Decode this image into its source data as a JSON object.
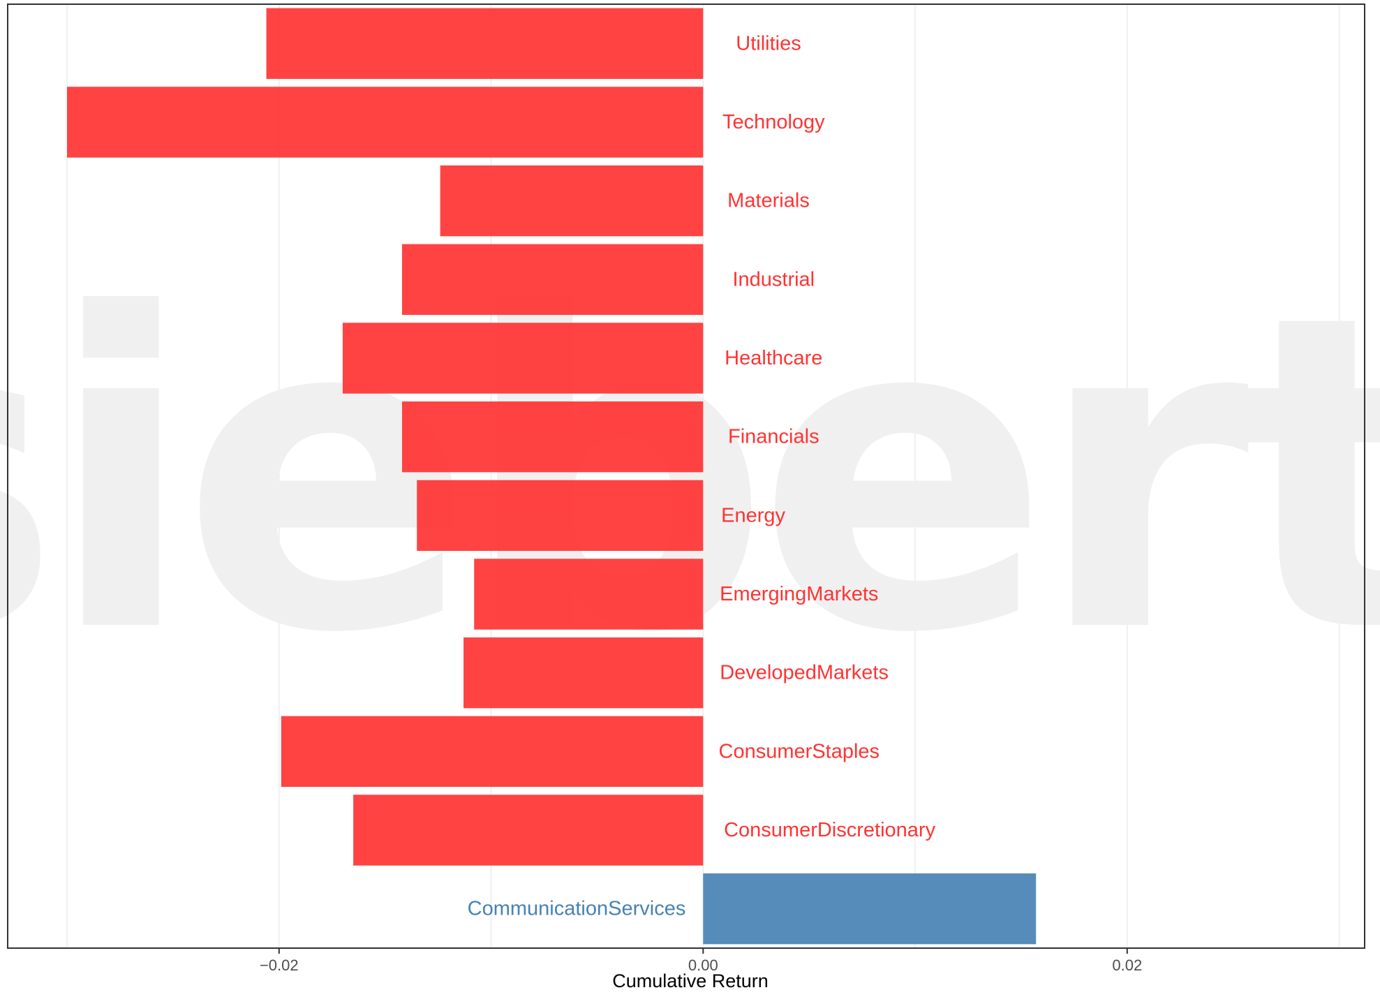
{
  "chart_data": {
    "type": "bar",
    "orientation": "horizontal",
    "title": "",
    "xlabel": "Cumulative Return",
    "ylabel": "",
    "xlim": [
      -0.0328,
      0.0312
    ],
    "x_ticks": [
      -0.02,
      0.0,
      0.02
    ],
    "x_tick_labels": [
      "−0.02",
      "0.00",
      "0.02"
    ],
    "grid": true,
    "legend": "none",
    "watermark": "siebert.",
    "colors": {
      "negative": "#FF3333",
      "positive": "#4682B4",
      "grid": "#EBEBEB",
      "watermark": "#F0F0F0"
    },
    "categories": [
      "Utilities",
      "Technology",
      "Materials",
      "Industrial",
      "Healthcare",
      "Financials",
      "Energy",
      "EmergingMarkets",
      "DevelopedMarkets",
      "ConsumerStaples",
      "ConsumerDiscretionary",
      "CommunicationServices"
    ],
    "values": [
      -0.0206,
      -0.03,
      -0.0124,
      -0.0142,
      -0.017,
      -0.0142,
      -0.0135,
      -0.0108,
      -0.0113,
      -0.0199,
      -0.0165,
      0.0157
    ]
  }
}
